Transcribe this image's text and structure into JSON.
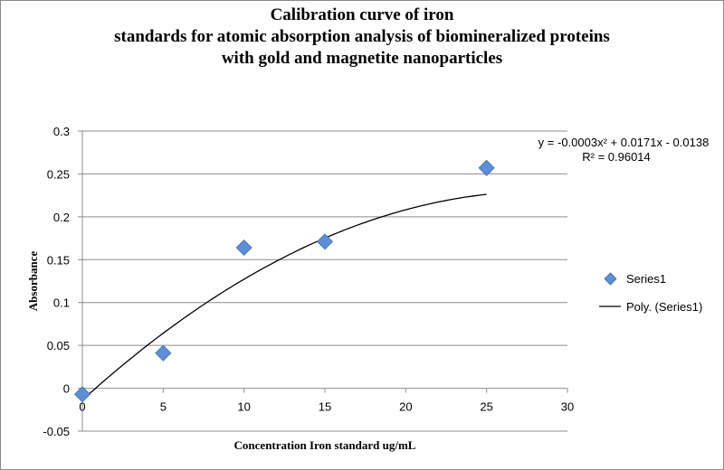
{
  "chart_data": {
    "type": "scatter",
    "title": [
      "Calibration curve of iron",
      "standards for atomic absorption analysis of biomineralized proteins",
      "with gold and magnetite nanoparticles"
    ],
    "xlabel": "Concentration Iron standard ug/mL",
    "ylabel": "Absorbance",
    "xlim": [
      0,
      30
    ],
    "ylim": [
      -0.05,
      0.3
    ],
    "xticks": [
      "0",
      "5",
      "10",
      "15",
      "20",
      "25",
      "30"
    ],
    "yticks": [
      "-0.05",
      "0",
      "0.05",
      "0.1",
      "0.15",
      "0.2",
      "0.25",
      "0.3"
    ],
    "grid": "horizontal",
    "legend_position": "right",
    "series": [
      {
        "name": "Series1",
        "marker": "diamond",
        "color": "#5b8fd6",
        "x": [
          0,
          5,
          10,
          15,
          25
        ],
        "y": [
          -0.007,
          0.041,
          0.164,
          0.171,
          0.257
        ]
      }
    ],
    "trendline": {
      "name": "Poly. (Series1)",
      "type": "polynomial",
      "order": 2,
      "coefficients": [
        -0.0003,
        0.0171,
        -0.0138
      ],
      "x_range": [
        0,
        25
      ],
      "equation": "y = -0.0003x² + 0.0171x - 0.0138",
      "r_squared": "R² = 0.96014",
      "color": "#000000"
    }
  }
}
